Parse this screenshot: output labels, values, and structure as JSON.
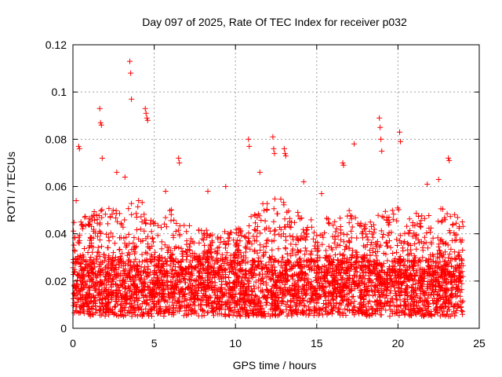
{
  "chart_data": {
    "type": "scatter",
    "title": "Day 097 of 2025, Rate Of TEC Index for receiver p032",
    "xlabel": "GPS time / hours",
    "ylabel": "ROTI / TECUs",
    "xlim": [
      0,
      25
    ],
    "ylim": [
      0,
      0.12
    ],
    "x_ticks": [
      "0",
      "5",
      "10",
      "15",
      "20",
      "25"
    ],
    "y_ticks": [
      "0",
      "0.02",
      "0.04",
      "0.06",
      "0.08",
      "0.1",
      "0.12"
    ],
    "grid": true,
    "legend": "none",
    "marker": "plus",
    "color": "#ff0000",
    "series": [
      {
        "x": [
          3.5,
          3.55,
          3.6,
          1.65,
          1.7,
          1.75,
          4.45,
          4.5,
          4.55,
          4.6,
          0.35,
          0.4,
          1.8,
          10.8,
          10.85,
          12.3,
          12.35,
          12.4,
          13.0,
          13.05,
          13.1,
          16.6,
          16.65,
          17.3,
          18.85,
          18.9,
          18.95,
          19.0,
          20.1,
          20.15,
          23.1,
          23.15,
          6.5,
          6.55,
          2.7,
          3.2,
          8.3,
          11.5,
          14.2,
          21.8,
          22.5,
          9.4,
          15.3,
          0.2,
          5.7
        ],
        "y": [
          0.113,
          0.108,
          0.097,
          0.093,
          0.087,
          0.086,
          0.093,
          0.091,
          0.089,
          0.088,
          0.077,
          0.076,
          0.072,
          0.08,
          0.077,
          0.081,
          0.076,
          0.074,
          0.076,
          0.074,
          0.073,
          0.07,
          0.069,
          0.078,
          0.089,
          0.085,
          0.08,
          0.075,
          0.083,
          0.079,
          0.072,
          0.071,
          0.072,
          0.07,
          0.066,
          0.064,
          0.058,
          0.066,
          0.062,
          0.061,
          0.063,
          0.06,
          0.057,
          0.054,
          0.058
        ]
      }
    ],
    "band_profile": {
      "x": [
        0,
        1,
        2,
        3,
        4,
        5,
        6,
        7,
        8,
        9,
        10,
        11,
        12,
        13,
        14,
        15,
        16,
        17,
        18,
        19,
        20,
        21,
        22,
        23,
        24
      ],
      "typical_max": [
        0.045,
        0.05,
        0.052,
        0.05,
        0.055,
        0.05,
        0.052,
        0.045,
        0.042,
        0.042,
        0.042,
        0.048,
        0.055,
        0.055,
        0.05,
        0.045,
        0.048,
        0.05,
        0.044,
        0.05,
        0.052,
        0.05,
        0.052,
        0.05,
        0.047
      ],
      "dense_low": 0.007,
      "dense_high": 0.028
    }
  }
}
